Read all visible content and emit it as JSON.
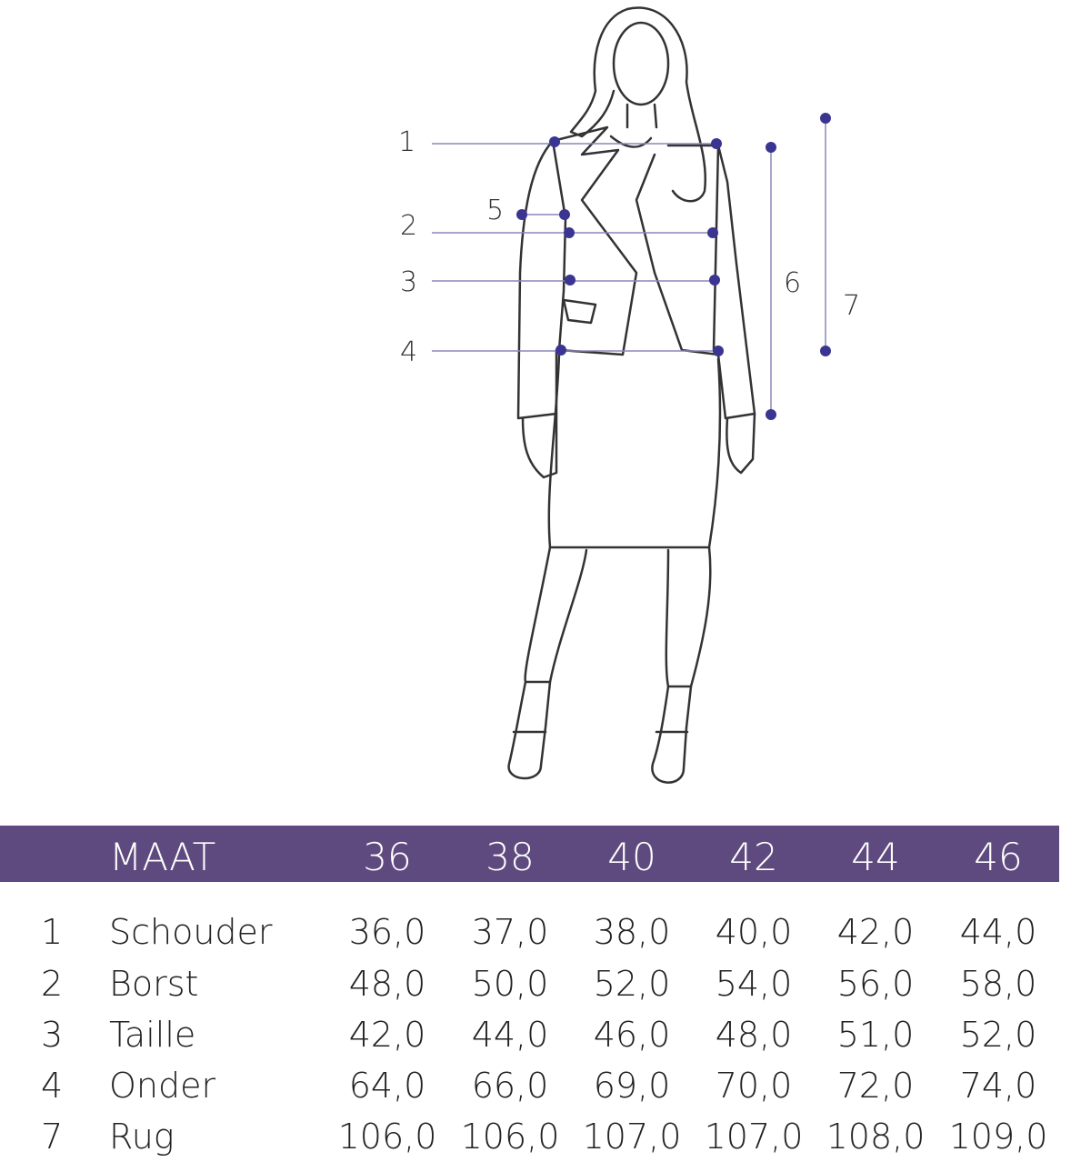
{
  "figure": {
    "measurement_labels": [
      "1",
      "2",
      "3",
      "4",
      "5",
      "6",
      "7"
    ],
    "marker_color": "#3b3592",
    "line_color": "#8a88b8"
  },
  "table": {
    "header_color": "#5e4a7e",
    "header_label": "MAAT",
    "sizes": [
      "36",
      "38",
      "40",
      "42",
      "44",
      "46"
    ],
    "rows": [
      {
        "num": "1",
        "name": "Schouder",
        "values": [
          "36,0",
          "37,0",
          "38,0",
          "40,0",
          "42,0",
          "44,0"
        ]
      },
      {
        "num": "2",
        "name": "Borst",
        "values": [
          "48,0",
          "50,0",
          "52,0",
          "54,0",
          "56,0",
          "58,0"
        ]
      },
      {
        "num": "3",
        "name": "Taille",
        "values": [
          "42,0",
          "44,0",
          "46,0",
          "48,0",
          "51,0",
          "52,0"
        ]
      },
      {
        "num": "4",
        "name": "Onder",
        "values": [
          "64,0",
          "66,0",
          "69,0",
          "70,0",
          "72,0",
          "74,0"
        ]
      },
      {
        "num": "7",
        "name": "Rug",
        "values": [
          "106,0",
          "106,0",
          "107,0",
          "107,0",
          "108,0",
          "109,0"
        ]
      }
    ]
  }
}
